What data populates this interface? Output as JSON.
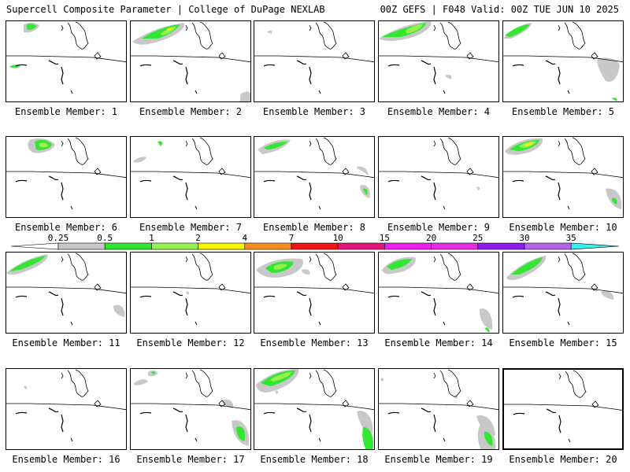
{
  "header": {
    "left_title": "Supercell Composite Parameter | College of DuPage NEXLAB",
    "right_title": "00Z GEFS | F048 Valid: 00Z TUE JUN 10 2025"
  },
  "colors": {
    "gray": "#c8c8c8",
    "green": "#32e632",
    "lightgreen": "#96f050",
    "yellow": "#f5f500",
    "orange": "#ff8c1e",
    "red": "#f01414",
    "crimson": "#e1147d",
    "magenta": "#f01ef0",
    "pinkmagenta": "#e62de6",
    "purple": "#8c1ef0",
    "lavender": "#b464e6",
    "cyan": "#3ceef0",
    "white": "#ffffff"
  },
  "colorbar": {
    "labels": [
      "0.25",
      "0.5",
      "1",
      "2",
      "4",
      "7",
      "10",
      "15",
      "20",
      "25",
      "30",
      "35"
    ],
    "colors": [
      "#ffffff",
      "#c8c8c8",
      "#32e632",
      "#96f050",
      "#f5f500",
      "#ff8c1e",
      "#f01414",
      "#e1147d",
      "#f01ef0",
      "#e62de6",
      "#8c1ef0",
      "#b464e6",
      "#3ceef0"
    ]
  },
  "members": [
    {
      "label": "Ensemble Member: 1"
    },
    {
      "label": "Ensemble Member: 2"
    },
    {
      "label": "Ensemble Member: 3"
    },
    {
      "label": "Ensemble Member: 4"
    },
    {
      "label": "Ensemble Member: 5"
    },
    {
      "label": "Ensemble Member: 6"
    },
    {
      "label": "Ensemble Member: 7"
    },
    {
      "label": "Ensemble Member: 8"
    },
    {
      "label": "Ensemble Member: 9"
    },
    {
      "label": "Ensemble Member: 10"
    },
    {
      "label": "Ensemble Member: 11"
    },
    {
      "label": "Ensemble Member: 12"
    },
    {
      "label": "Ensemble Member: 13"
    },
    {
      "label": "Ensemble Member: 14"
    },
    {
      "label": "Ensemble Member: 15"
    },
    {
      "label": "Ensemble Member: 16"
    },
    {
      "label": "Ensemble Member: 17"
    },
    {
      "label": "Ensemble Member: 18"
    },
    {
      "label": "Ensemble Member: 19"
    },
    {
      "label": "Ensemble Member: 20"
    }
  ]
}
